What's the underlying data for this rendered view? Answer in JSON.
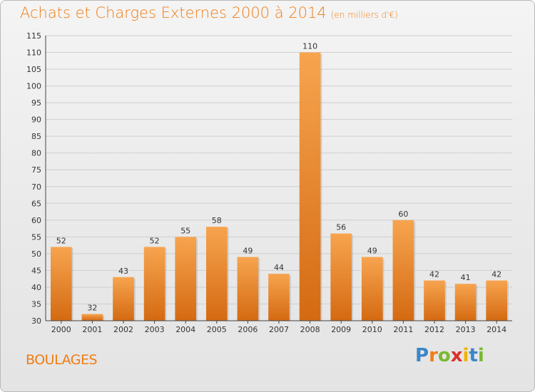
{
  "title": "Achats et Charges Externes 2000 à 2014",
  "subtitle": "(en milliers d'€)",
  "commune": "BOULAGES",
  "logo": {
    "letters": [
      "P",
      "r",
      "o",
      "x",
      "i",
      "t",
      "i"
    ],
    "colors": [
      "#3a86c8",
      "#f07d14",
      "#7bb832",
      "#d9312b",
      "#f0b400",
      "#3a86c8",
      "#7bb832"
    ]
  },
  "colors": {
    "bar_top": "#f7a44f",
    "bar_bottom": "#d46a12",
    "grid": "#cfcfcf",
    "axis_text": "#333333",
    "title": "#f07d14"
  },
  "chart_data": {
    "type": "bar",
    "title": "Achats et Charges Externes 2000 à 2014",
    "subtitle": "(en milliers d'€)",
    "categories": [
      "2000",
      "2001",
      "2002",
      "2003",
      "2004",
      "2005",
      "2006",
      "2007",
      "2008",
      "2009",
      "2010",
      "2011",
      "2012",
      "2013",
      "2014"
    ],
    "values": [
      52,
      32,
      43,
      52,
      55,
      58,
      49,
      44,
      110,
      56,
      49,
      60,
      42,
      41,
      42
    ],
    "ylim": [
      30,
      115
    ],
    "yticks": [
      30,
      35,
      40,
      45,
      50,
      55,
      60,
      65,
      70,
      75,
      80,
      85,
      90,
      95,
      100,
      105,
      110,
      115
    ],
    "grid": true,
    "data_labels": true
  }
}
